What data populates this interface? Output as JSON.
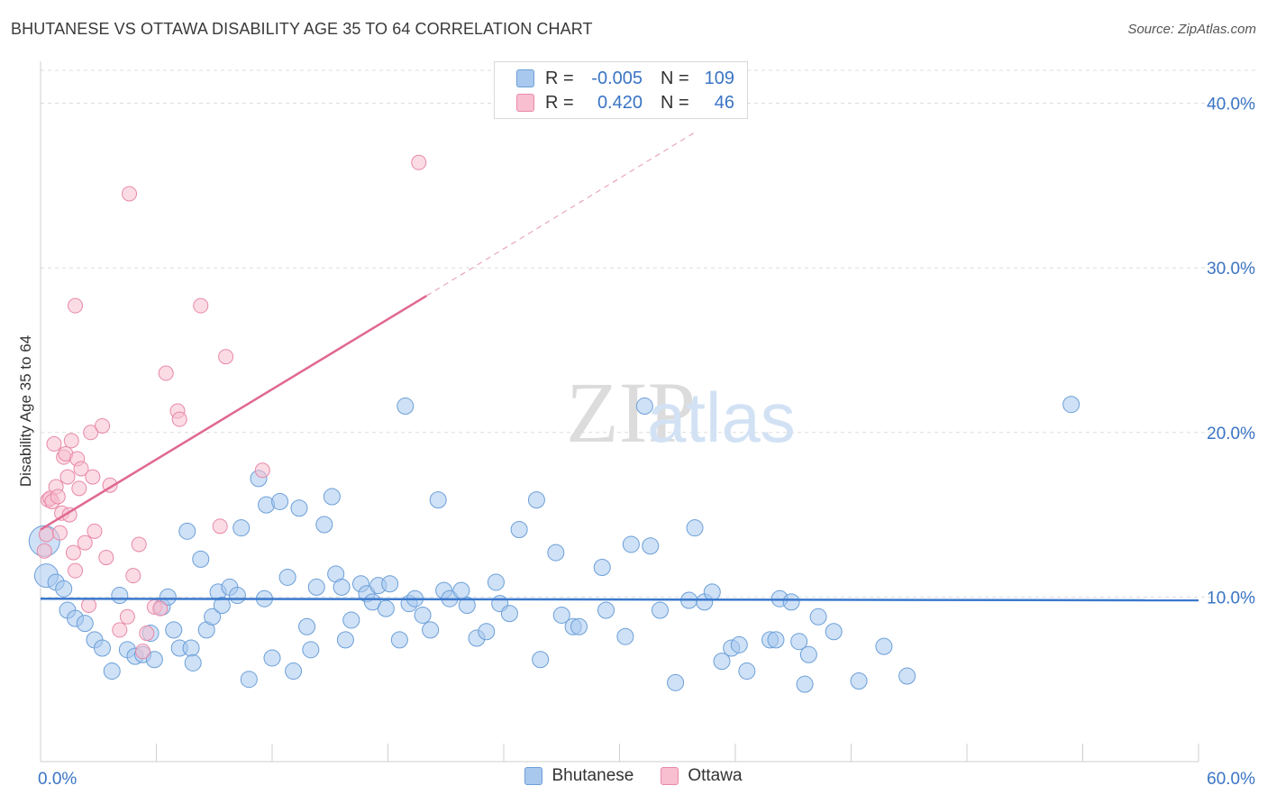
{
  "title": "BHUTANESE VS OTTAWA DISABILITY AGE 35 TO 64 CORRELATION CHART",
  "source": "Source: ZipAtlas.com",
  "watermark": {
    "zip": "ZIP",
    "atlas": "atlas"
  },
  "legend": {
    "rows": [
      {
        "r_label": "R =",
        "r_value": "-0.005",
        "n_label": "N =",
        "n_value": "109"
      },
      {
        "r_label": "R =",
        "r_value": "0.420",
        "n_label": "N =",
        "n_value": "46"
      }
    ]
  },
  "colors": {
    "blue_fill": "#a8c8ee",
    "blue_stroke": "#6b9fd8",
    "blue_line": "#3a78cc",
    "pink_fill": "#f7bfd0",
    "pink_stroke": "#e888a8",
    "pink_line": "#e06890",
    "axis_text": "#3a74c4",
    "grid": "#dddddd"
  },
  "chart_data": {
    "type": "scatter",
    "title": "BHUTANESE VS OTTAWA DISABILITY AGE 35 TO 64 CORRELATION CHART",
    "xlabel": "",
    "ylabel": "Disability Age 35 to 64",
    "xlim": [
      0,
      60
    ],
    "ylim": [
      0,
      42
    ],
    "x_tick_labels": [
      {
        "value": 0,
        "label": "0.0%"
      },
      {
        "value": 60,
        "label": "60.0%"
      }
    ],
    "y_tick_labels": [
      {
        "value": 10,
        "label": "10.0%"
      },
      {
        "value": 20,
        "label": "20.0%"
      },
      {
        "value": 30,
        "label": "30.0%"
      },
      {
        "value": 40,
        "label": "40.0%"
      }
    ],
    "series": [
      {
        "name": "Bhutanese",
        "r": -0.005,
        "n": 109,
        "trend": {
          "x0": 0,
          "y0": 9.9,
          "x1": 60,
          "y1": 9.8
        },
        "points": [
          [
            0.2,
            13.4,
            3
          ],
          [
            0.3,
            11.3,
            2
          ],
          [
            0.8,
            10.9,
            1
          ],
          [
            1.2,
            10.5,
            1
          ],
          [
            1.4,
            9.2,
            1
          ],
          [
            1.8,
            8.7,
            1
          ],
          [
            2.3,
            8.4,
            1
          ],
          [
            2.8,
            7.4,
            1
          ],
          [
            3.2,
            6.9,
            1
          ],
          [
            3.7,
            5.5,
            1
          ],
          [
            4.1,
            10.1,
            1
          ],
          [
            4.5,
            6.8,
            1
          ],
          [
            4.9,
            6.4,
            1
          ],
          [
            5.3,
            6.5,
            1
          ],
          [
            5.7,
            7.8,
            1
          ],
          [
            5.9,
            6.2,
            1
          ],
          [
            6.3,
            9.4,
            1
          ],
          [
            6.6,
            10,
            1
          ],
          [
            6.9,
            8,
            1
          ],
          [
            7.2,
            6.9,
            1
          ],
          [
            7.6,
            14,
            1
          ],
          [
            7.8,
            6.9,
            1
          ],
          [
            7.9,
            6,
            1
          ],
          [
            8.3,
            12.3,
            1
          ],
          [
            8.6,
            8,
            1
          ],
          [
            8.9,
            8.8,
            1
          ],
          [
            9.2,
            10.3,
            1
          ],
          [
            9.4,
            9.5,
            1
          ],
          [
            9.8,
            10.6,
            1
          ],
          [
            10.2,
            10.1,
            1
          ],
          [
            10.4,
            14.2,
            1
          ],
          [
            10.8,
            5,
            1
          ],
          [
            11.3,
            17.2,
            1
          ],
          [
            11.6,
            9.9,
            1
          ],
          [
            11.7,
            15.6,
            1
          ],
          [
            12,
            6.3,
            1
          ],
          [
            12.4,
            15.8,
            1
          ],
          [
            12.8,
            11.2,
            1
          ],
          [
            13.1,
            5.5,
            1
          ],
          [
            13.4,
            15.4,
            1
          ],
          [
            13.8,
            8.2,
            1
          ],
          [
            14,
            6.8,
            1
          ],
          [
            14.3,
            10.6,
            1
          ],
          [
            14.7,
            14.4,
            1
          ],
          [
            15.1,
            16.1,
            1
          ],
          [
            15.3,
            11.4,
            1
          ],
          [
            15.6,
            10.6,
            1
          ],
          [
            15.8,
            7.4,
            1
          ],
          [
            16.1,
            8.6,
            1
          ],
          [
            16.6,
            10.8,
            1
          ],
          [
            16.9,
            10.2,
            1
          ],
          [
            17.2,
            9.7,
            1
          ],
          [
            17.5,
            10.7,
            1
          ],
          [
            17.9,
            9.3,
            1
          ],
          [
            18.1,
            10.8,
            1
          ],
          [
            18.6,
            7.4,
            1
          ],
          [
            18.9,
            21.6,
            1
          ],
          [
            19.1,
            9.6,
            1
          ],
          [
            19.4,
            9.9,
            1
          ],
          [
            19.8,
            8.9,
            1
          ],
          [
            20.2,
            8,
            1
          ],
          [
            20.6,
            15.9,
            1
          ],
          [
            20.9,
            10.4,
            1
          ],
          [
            21.2,
            9.9,
            1
          ],
          [
            21.8,
            10.4,
            1
          ],
          [
            22.1,
            9.5,
            1
          ],
          [
            22.6,
            7.5,
            1
          ],
          [
            23.1,
            7.9,
            1
          ],
          [
            23.6,
            10.9,
            1
          ],
          [
            23.8,
            9.6,
            1
          ],
          [
            24.3,
            9,
            1
          ],
          [
            24.8,
            14.1,
            1
          ],
          [
            25.7,
            15.9,
            1
          ],
          [
            25.9,
            6.2,
            1
          ],
          [
            26.7,
            12.7,
            1
          ],
          [
            27,
            8.9,
            1
          ],
          [
            27.6,
            8.2,
            1
          ],
          [
            27.9,
            8.2,
            1
          ],
          [
            29.1,
            11.8,
            1
          ],
          [
            29.3,
            9.2,
            1
          ],
          [
            30.3,
            7.6,
            1
          ],
          [
            30.6,
            13.2,
            1
          ],
          [
            31.3,
            21.6,
            1
          ],
          [
            31.6,
            13.1,
            1
          ],
          [
            32.1,
            9.2,
            1
          ],
          [
            32.9,
            4.8,
            1
          ],
          [
            33.6,
            9.8,
            1
          ],
          [
            33.9,
            14.2,
            1
          ],
          [
            34.4,
            9.7,
            1
          ],
          [
            34.8,
            10.3,
            1
          ],
          [
            35.3,
            6.1,
            1
          ],
          [
            35.8,
            6.9,
            1
          ],
          [
            36.2,
            7.1,
            1
          ],
          [
            36.6,
            5.5,
            1
          ],
          [
            37.8,
            7.4,
            1
          ],
          [
            38.1,
            7.4,
            1
          ],
          [
            38.3,
            9.9,
            1
          ],
          [
            38.9,
            9.7,
            1
          ],
          [
            39.3,
            7.3,
            1
          ],
          [
            39.6,
            4.7,
            1
          ],
          [
            39.8,
            6.5,
            1
          ],
          [
            40.3,
            8.8,
            1
          ],
          [
            41.1,
            7.9,
            1
          ],
          [
            42.4,
            4.9,
            1
          ],
          [
            43.7,
            7,
            1
          ],
          [
            44.9,
            5.2,
            1
          ],
          [
            53.4,
            21.7,
            1
          ]
        ]
      },
      {
        "name": "Ottawa",
        "r": 0.42,
        "n": 46,
        "trend": {
          "x0": 0,
          "y0": 14.1,
          "x1": 20,
          "y1": 28.3
        },
        "trend_dashed": {
          "x0": 20,
          "y0": 28.3,
          "x1": 34,
          "y1": 38.3
        },
        "points": [
          [
            0.2,
            12.8
          ],
          [
            0.3,
            13.8
          ],
          [
            0.4,
            15.9
          ],
          [
            0.5,
            16
          ],
          [
            0.6,
            15.8
          ],
          [
            0.7,
            19.3
          ],
          [
            0.8,
            16.7
          ],
          [
            0.9,
            16.1
          ],
          [
            1,
            13.9
          ],
          [
            1.1,
            15.1
          ],
          [
            1.2,
            18.5
          ],
          [
            1.3,
            18.7
          ],
          [
            1.4,
            17.3
          ],
          [
            1.5,
            15
          ],
          [
            1.6,
            19.5
          ],
          [
            1.7,
            12.7
          ],
          [
            1.8,
            11.6
          ],
          [
            1.8,
            27.7
          ],
          [
            1.9,
            18.4
          ],
          [
            2,
            16.6
          ],
          [
            2.1,
            17.8
          ],
          [
            2.3,
            13.3
          ],
          [
            2.5,
            9.5
          ],
          [
            2.6,
            20
          ],
          [
            2.7,
            17.3
          ],
          [
            2.8,
            14
          ],
          [
            3.2,
            20.4
          ],
          [
            3.4,
            12.4
          ],
          [
            3.6,
            16.8
          ],
          [
            4.1,
            8
          ],
          [
            4.5,
            8.8
          ],
          [
            4.6,
            34.5
          ],
          [
            4.8,
            11.3
          ],
          [
            5.1,
            13.2
          ],
          [
            5.3,
            6.7
          ],
          [
            5.5,
            7.8
          ],
          [
            5.9,
            9.4
          ],
          [
            6.2,
            9.3
          ],
          [
            6.5,
            23.6
          ],
          [
            7.1,
            21.3
          ],
          [
            7.2,
            20.8
          ],
          [
            8.3,
            27.7
          ],
          [
            9.3,
            14.3
          ],
          [
            9.6,
            24.6
          ],
          [
            11.5,
            17.7
          ],
          [
            19.6,
            36.4
          ]
        ]
      }
    ]
  }
}
